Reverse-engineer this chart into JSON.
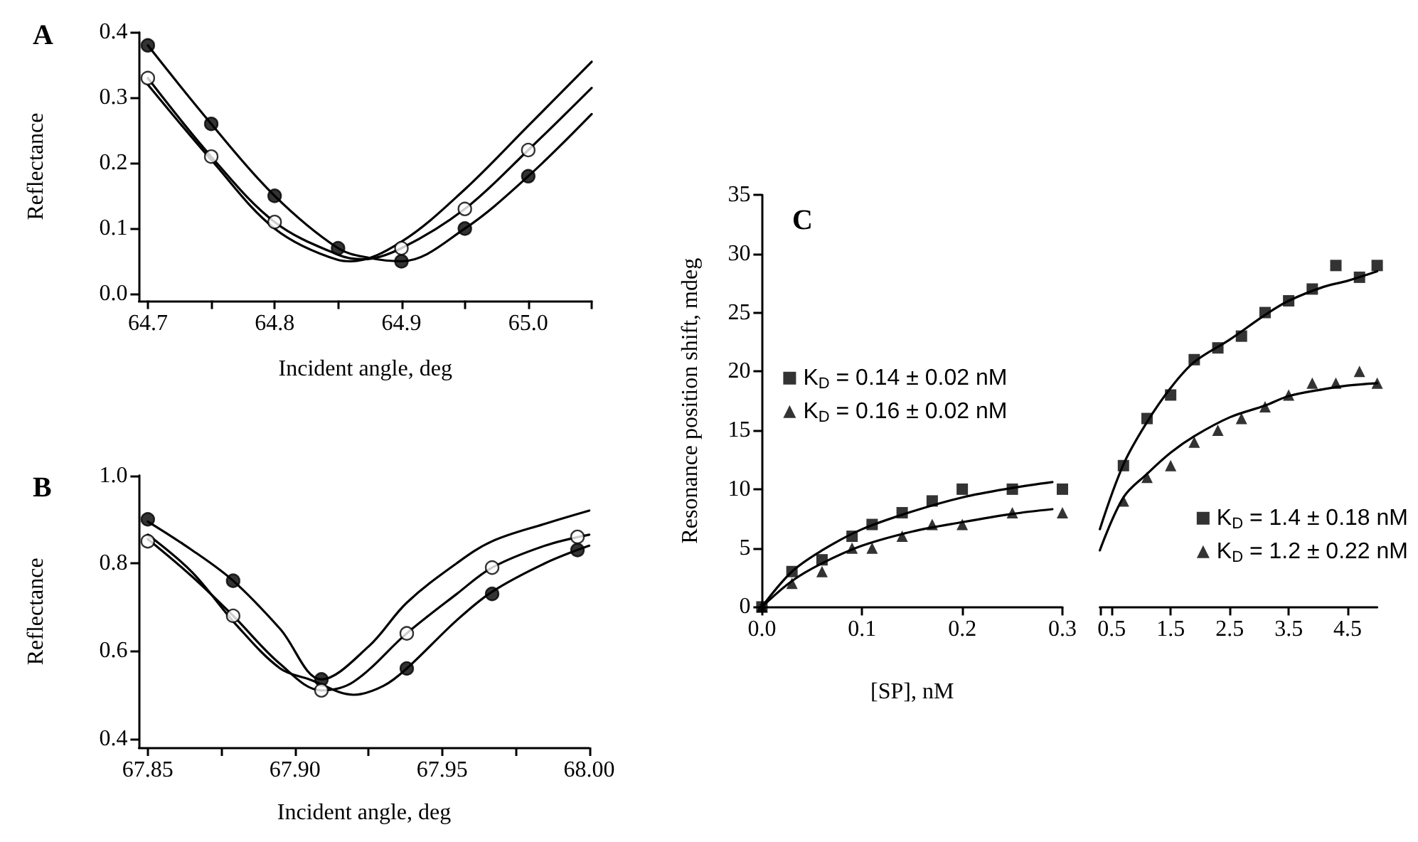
{
  "chart_data": [
    {
      "type": "line",
      "title": "A",
      "xlabel": "Incident angle, deg",
      "ylabel": "Reflectance",
      "xlim": [
        64.693,
        65.05
      ],
      "ylim": [
        -0.01,
        0.4
      ],
      "xticks": [
        64.7,
        {
          "value": 64.75,
          "label": null
        },
        64.8,
        {
          "value": 64.85,
          "label": null
        },
        64.9,
        {
          "value": 64.95,
          "label": null
        },
        {
          "value": 65,
          "label": "65.0"
        },
        {
          "value": 65.05,
          "label": null
        }
      ],
      "yticks": [
        {
          "value": 0,
          "label": "0.0"
        },
        0.1,
        0.2,
        0.3,
        0.4
      ],
      "series": [
        {
          "color": "#000000",
          "marker": "none",
          "x": [
            64.7,
            64.75,
            64.8,
            64.85,
            64.875,
            64.9,
            64.95,
            65.0,
            65.05
          ],
          "values": [
            0.38,
            0.26,
            0.15,
            0.07,
            0.055,
            0.05,
            0.1,
            0.18,
            0.275
          ]
        },
        {
          "color": "#000000",
          "marker": "none",
          "x": [
            64.7,
            64.75,
            64.8,
            64.85,
            64.87,
            64.9,
            64.95,
            65.0,
            65.05
          ],
          "values": [
            0.33,
            0.21,
            0.11,
            0.06,
            0.053,
            0.07,
            0.13,
            0.22,
            0.315
          ]
        },
        {
          "color": "#000000",
          "marker": "none",
          "x": [
            64.7,
            64.75,
            64.8,
            64.85,
            64.86,
            64.9,
            64.95,
            65.0,
            65.05
          ],
          "values": [
            0.32,
            0.205,
            0.1,
            0.052,
            0.05,
            0.08,
            0.16,
            0.257,
            0.355
          ]
        },
        {
          "type": "scatter",
          "color": "#000000",
          "marker": "circle",
          "x": [
            64.7,
            64.75,
            64.8,
            64.85,
            64.9,
            64.95,
            65.0
          ],
          "values": [
            0.38,
            0.26,
            0.15,
            0.07,
            0.05,
            0.1,
            0.18
          ]
        },
        {
          "type": "scatter",
          "color": "#ffffff",
          "marker": "circle",
          "x": [
            64.7,
            64.75,
            64.8,
            64.9,
            64.95,
            65.0
          ],
          "values": [
            0.33,
            0.21,
            0.11,
            0.07,
            0.13,
            0.22
          ]
        }
      ]
    },
    {
      "type": "line",
      "title": "B",
      "xlabel": "Incident angle, deg",
      "ylabel": "Reflectance",
      "xlim": [
        67.847,
        68.0
      ],
      "ylim": [
        0.38,
        1.0
      ],
      "xticks": [
        67.85,
        {
          "value": 67.875,
          "label": null
        },
        {
          "value": 67.9,
          "label": "67.90"
        },
        {
          "value": 67.925,
          "label": null
        },
        67.95,
        {
          "value": 67.975,
          "label": null
        },
        {
          "value": 68,
          "label": "68.00"
        }
      ],
      "yticks": [
        0.4,
        0.6,
        0.8,
        {
          "value": 1,
          "label": "1.0"
        }
      ],
      "series": [
        {
          "color": "#000000",
          "marker": "none",
          "x": [
            67.85,
            67.865,
            67.879,
            67.895,
            67.909,
            67.925,
            67.938,
            67.955,
            67.967,
            67.985,
            68.0
          ],
          "values": [
            0.895,
            0.83,
            0.76,
            0.65,
            0.535,
            0.61,
            0.71,
            0.8,
            0.85,
            0.89,
            0.92
          ]
        },
        {
          "color": "#000000",
          "marker": "none",
          "x": [
            67.85,
            67.865,
            67.879,
            67.895,
            67.909,
            67.92,
            67.938,
            67.955,
            67.967,
            67.985,
            68.0
          ],
          "values": [
            0.855,
            0.77,
            0.68,
            0.57,
            0.51,
            0.53,
            0.64,
            0.73,
            0.79,
            0.84,
            0.865
          ]
        },
        {
          "color": "#000000",
          "marker": "none",
          "x": [
            67.85,
            67.865,
            67.88,
            67.895,
            67.905,
            67.92,
            67.93,
            67.938,
            67.955,
            67.967,
            67.985,
            68.0
          ],
          "values": [
            0.865,
            0.78,
            0.66,
            0.56,
            0.535,
            0.5,
            0.52,
            0.56,
            0.67,
            0.735,
            0.8,
            0.84
          ]
        },
        {
          "type": "scatter",
          "color": "#000000",
          "marker": "circle",
          "x": [
            67.85,
            67.879,
            67.909,
            67.938,
            67.967,
            67.996
          ],
          "values": [
            0.9,
            0.76,
            0.535,
            0.56,
            0.73,
            0.83
          ]
        },
        {
          "type": "scatter",
          "color": "#ffffff",
          "marker": "circle",
          "x": [
            67.85,
            67.879,
            67.909,
            67.938,
            67.967,
            67.996
          ],
          "values": [
            0.85,
            0.68,
            0.51,
            0.64,
            0.79,
            0.86
          ]
        }
      ]
    },
    {
      "type": "scatter",
      "title": "C",
      "xlabel": "[SP], nM",
      "ylabel": "Resonance position shift, mdeg",
      "legend": "left",
      "xlim": [
        0,
        0.3
      ],
      "ylim": [
        0,
        35
      ],
      "xticks": [
        {
          "value": 0,
          "label": "0.0"
        },
        0.1,
        0.2,
        0.3
      ],
      "yticks": [
        0,
        5,
        10,
        15,
        20,
        25,
        30,
        35
      ],
      "series": [
        {
          "type": "line",
          "color": "#000000",
          "marker": "none",
          "x": [
            0,
            0.03,
            0.06,
            0.1,
            0.15,
            0.2,
            0.25,
            0.29
          ],
          "values": [
            0,
            3,
            4.8,
            6.6,
            8.1,
            9.3,
            10.1,
            10.6
          ]
        },
        {
          "type": "line",
          "color": "#000000",
          "marker": "none",
          "x": [
            0,
            0.03,
            0.06,
            0.1,
            0.15,
            0.2,
            0.25,
            0.29
          ],
          "values": [
            0,
            2.2,
            3.7,
            5.2,
            6.4,
            7.2,
            7.9,
            8.3
          ]
        },
        {
          "name": "K$_{D}$ = 0.14 ± 0.02 nM",
          "color": "#000000",
          "marker": "square",
          "x": [
            0,
            0.03,
            0.06,
            0.09,
            0.11,
            0.14,
            0.17,
            0.2,
            0.25,
            0.3
          ],
          "values": [
            0,
            3,
            4,
            6,
            7,
            8,
            9,
            10,
            10,
            10
          ]
        },
        {
          "name": "K$_{D}$ = 0.16 ± 0.02 nM",
          "color": "#000000",
          "marker": "triangle",
          "x": [
            0,
            0.03,
            0.06,
            0.09,
            0.11,
            0.14,
            0.17,
            0.2,
            0.25,
            0.3
          ],
          "values": [
            0,
            2,
            3,
            5,
            5,
            6,
            7,
            7,
            8,
            8
          ]
        }
      ]
    },
    {
      "type": "scatter",
      "legend": "bottom right",
      "tick_labels": "x",
      "xlim": [
        0.3,
        5.0
      ],
      "ylim": [
        0,
        35
      ],
      "xticks": [
        {
          "value": 0.3,
          "label": null
        },
        0.5,
        1.5,
        2.5,
        3.5,
        4.5
      ],
      "series": [
        {
          "type": "line",
          "color": "#000000",
          "marker": "none",
          "x": [
            0.3,
            0.7,
            1.1,
            1.5,
            1.9,
            2.5,
            3.1,
            3.5,
            4.1,
            4.5,
            5.0
          ],
          "values": [
            6.6,
            12.1,
            15.7,
            18.6,
            20.8,
            22.7,
            24.8,
            26,
            27.2,
            27.7,
            28.5
          ]
        },
        {
          "type": "line",
          "color": "#000000",
          "marker": "none",
          "x": [
            0.3,
            0.7,
            1.1,
            1.5,
            1.9,
            2.5,
            3.1,
            3.5,
            4.1,
            4.5,
            5.0
          ],
          "values": [
            4.8,
            9.3,
            11.3,
            13.1,
            14.5,
            16.1,
            17.1,
            17.9,
            18.5,
            18.8,
            19
          ]
        },
        {
          "name": "K$_{D}$ = 1.4 ± 0.18 nM",
          "color": "#000000",
          "marker": "square",
          "x": [
            0.7,
            1.1,
            1.5,
            1.9,
            2.3,
            2.7,
            3.1,
            3.5,
            3.9,
            4.3,
            4.7,
            5.0
          ],
          "values": [
            12,
            16,
            18,
            21,
            22,
            23,
            25,
            26,
            27,
            29,
            28,
            29
          ]
        },
        {
          "name": "K$_{D}$ = 1.2 ± 0.22 nM",
          "color": "#000000",
          "marker": "triangle",
          "x": [
            0.7,
            1.1,
            1.5,
            1.9,
            2.3,
            2.7,
            3.1,
            3.5,
            3.9,
            4.3,
            4.7,
            5.0
          ],
          "values": [
            9,
            11,
            12,
            14,
            15,
            16,
            17,
            18,
            19,
            19,
            20,
            19
          ]
        }
      ]
    }
  ]
}
